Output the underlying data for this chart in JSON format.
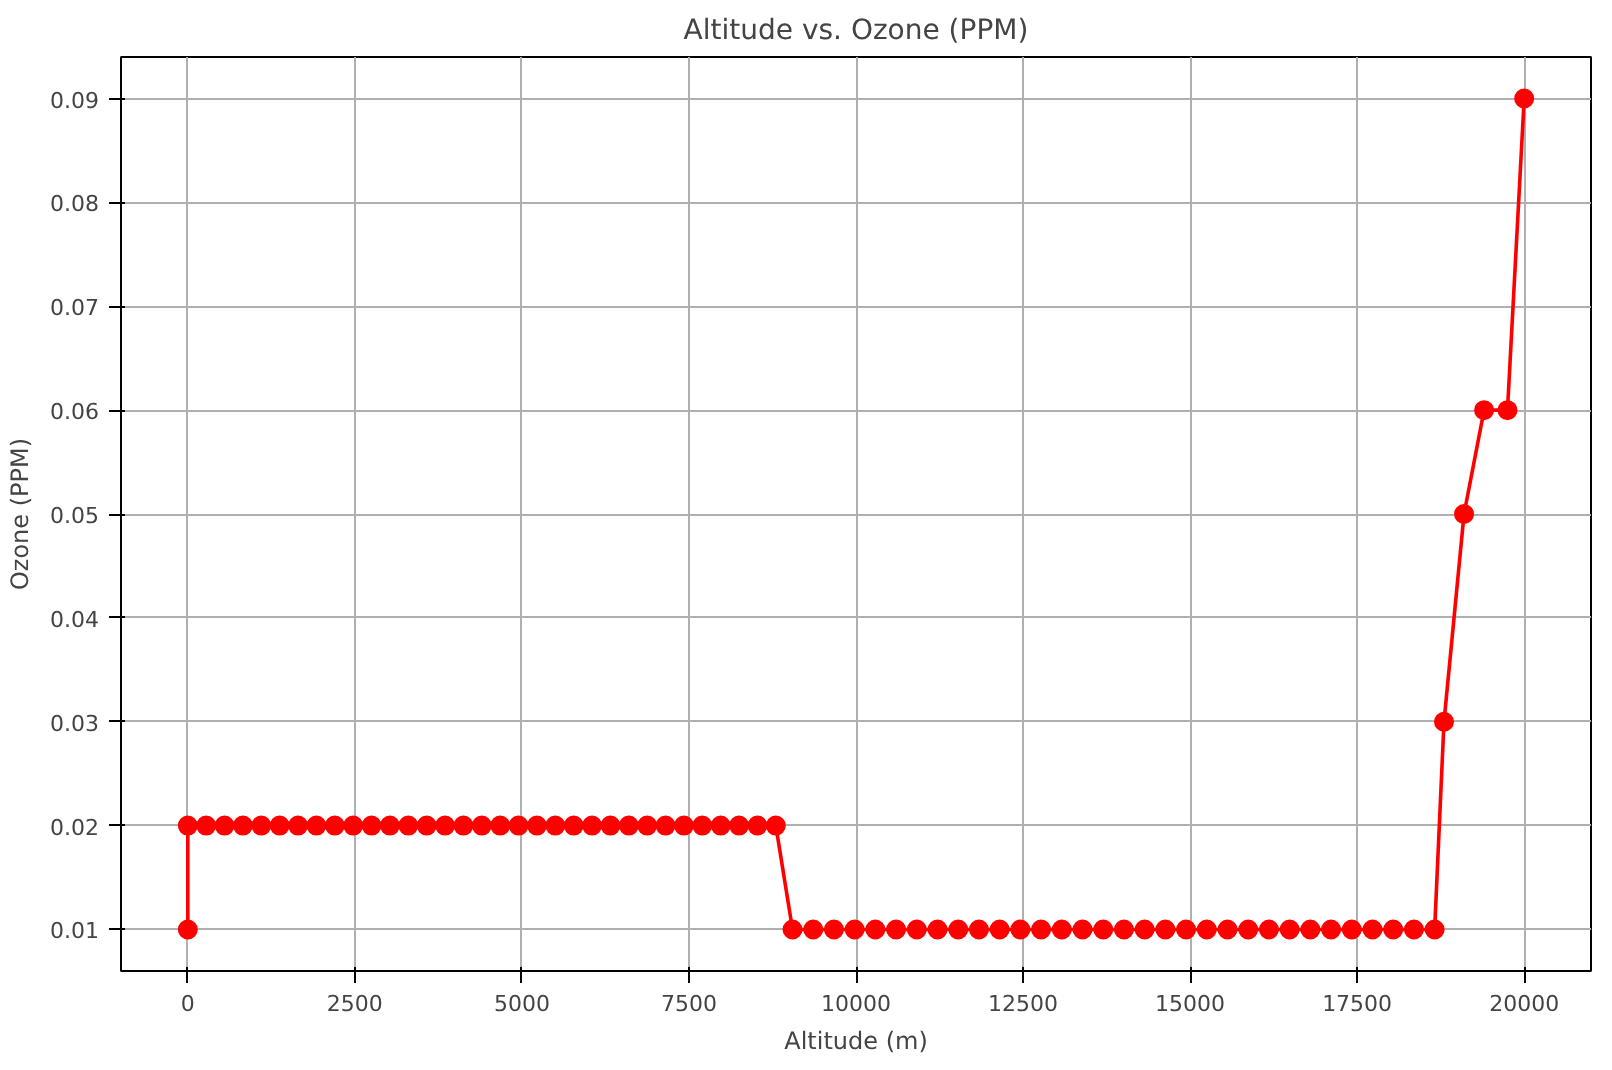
{
  "chart_data": {
    "type": "line",
    "title": "Altitude vs. Ozone (PPM)",
    "xlabel": "Altitude (m)",
    "ylabel": "Ozone (PPM)",
    "x": [
      0,
      0,
      275,
      550,
      825,
      1100,
      1375,
      1650,
      1925,
      2200,
      2475,
      2750,
      3025,
      3300,
      3575,
      3850,
      4125,
      4400,
      4675,
      4950,
      5225,
      5500,
      5775,
      6050,
      6325,
      6600,
      6875,
      7150,
      7425,
      7700,
      7975,
      8250,
      8525,
      8800,
      9050,
      9360,
      9670,
      9980,
      10290,
      10600,
      10910,
      11220,
      11530,
      11840,
      12150,
      12460,
      12770,
      13080,
      13390,
      13700,
      14010,
      14320,
      14630,
      14940,
      15250,
      15560,
      15870,
      16180,
      16490,
      16800,
      17110,
      17420,
      17730,
      18040,
      18350,
      18660,
      18800,
      19100,
      19400,
      19750,
      20000
    ],
    "series": [
      {
        "color": "#ff0000",
        "values": [
          0.01,
          0.02,
          0.02,
          0.02,
          0.02,
          0.02,
          0.02,
          0.02,
          0.02,
          0.02,
          0.02,
          0.02,
          0.02,
          0.02,
          0.02,
          0.02,
          0.02,
          0.02,
          0.02,
          0.02,
          0.02,
          0.02,
          0.02,
          0.02,
          0.02,
          0.02,
          0.02,
          0.02,
          0.02,
          0.02,
          0.02,
          0.02,
          0.02,
          0.02,
          0.01,
          0.01,
          0.01,
          0.01,
          0.01,
          0.01,
          0.01,
          0.01,
          0.01,
          0.01,
          0.01,
          0.01,
          0.01,
          0.01,
          0.01,
          0.01,
          0.01,
          0.01,
          0.01,
          0.01,
          0.01,
          0.01,
          0.01,
          0.01,
          0.01,
          0.01,
          0.01,
          0.01,
          0.01,
          0.01,
          0.01,
          0.01,
          0.03,
          0.05,
          0.06,
          0.06,
          0.09
        ]
      }
    ],
    "xlim": [
      -1000,
      21000
    ],
    "ylim": [
      0.006,
      0.094
    ],
    "xticks": [
      0,
      2500,
      5000,
      7500,
      10000,
      12500,
      15000,
      17500,
      20000
    ],
    "yticks": [
      0.01,
      0.02,
      0.03,
      0.04,
      0.05,
      0.06,
      0.07,
      0.08,
      0.09
    ],
    "grid": true,
    "marker": "circle",
    "line_style": "solid"
  }
}
